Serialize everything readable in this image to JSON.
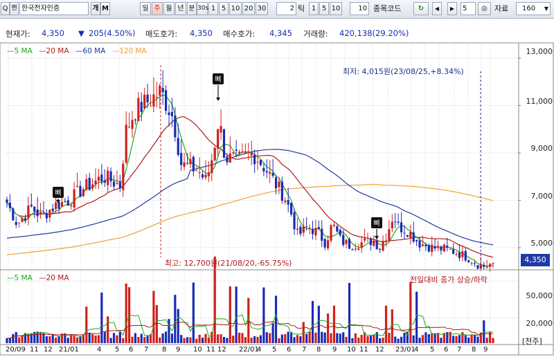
{
  "toolbar": {
    "search_icon_label": "Q",
    "search_tag": "팬",
    "stock_name": "한국전자인증",
    "mode1": "개",
    "mode2": "M",
    "period_day": "일",
    "period_week": "주",
    "period_month": "월",
    "period_year": "년",
    "period_min": "분",
    "period_30s": "30s",
    "min1": "1",
    "min5": "5",
    "min10": "10",
    "min20": "20",
    "min30": "30",
    "tick_value": "2",
    "tick_label": "틱",
    "tick1": "1",
    "tick5": "5",
    "tick10": "10",
    "tick_custom": "10",
    "code_label": "종목코드",
    "refresh_icon": "refresh-icon",
    "count_value": "5",
    "data_label": "자료",
    "data_count": "160"
  },
  "info": {
    "price_label": "현재가:",
    "price": "4,350",
    "change_arrow": "▼",
    "change": "205(4.50%)",
    "ask_label": "매도호가:",
    "ask": "4,350",
    "bid_label": "매수호가:",
    "bid": "4,345",
    "volume_label": "거래량:",
    "volume": "420,138(29.20%)"
  },
  "colors": {
    "up": "#d0201b",
    "down": "#1a2bb5",
    "ma5": "#1fa81f",
    "ma20": "#b01818",
    "ma60": "#1f3a9e",
    "ma120": "#f0a030",
    "price_tag_bg": "#1f3aa8"
  },
  "price_panel": {
    "legend": [
      {
        "label": "5 MA",
        "color": "#1fa81f"
      },
      {
        "label": "20 MA",
        "color": "#b01818"
      },
      {
        "label": "60 MA",
        "color": "#1f3a9e"
      },
      {
        "label": "120 MA",
        "color": "#f0a030"
      }
    ],
    "y_labels": [
      "13,000",
      "11,000",
      "9,000",
      "7,000",
      "5,000"
    ],
    "current_price_tag": "4,350",
    "low_annotation": "최저: 4,015원(23/08/25,+8.34%)",
    "high_annotation": "최고: 12,700원(21/08/20,-65.75%)",
    "signal_marker": "삐"
  },
  "volume_panel": {
    "legend": [
      {
        "label": "5 MA",
        "color": "#1fa81f"
      },
      {
        "label": "20 MA",
        "color": "#b01818"
      }
    ],
    "note": "전일대비 종가 상승/하락",
    "y_labels": [
      "50,000",
      "20,000"
    ],
    "unit_label": "[천주]"
  },
  "x_axis": {
    "labels": [
      "20/09",
      "11",
      "12",
      "21/01",
      "4",
      "5",
      "6",
      "7",
      "8",
      "9",
      "10",
      "11",
      "12",
      "22/01",
      "4",
      "5",
      "6",
      "7",
      "8",
      "9",
      "10",
      "11",
      "12",
      "23/01",
      "4",
      "5",
      "6",
      "7",
      "8",
      "9"
    ]
  },
  "chart_data": {
    "type": "candlestick",
    "period": "weekly",
    "y_range": [
      4000,
      13500
    ],
    "series": [
      {
        "name": "5 MA"
      },
      {
        "name": "20 MA"
      },
      {
        "name": "60 MA"
      },
      {
        "name": "120 MA"
      }
    ],
    "key_points": {
      "high": {
        "value": 12700,
        "date": "21/08/20"
      },
      "low": {
        "value": 4015,
        "date": "23/08/25"
      },
      "last": 4350
    }
  }
}
